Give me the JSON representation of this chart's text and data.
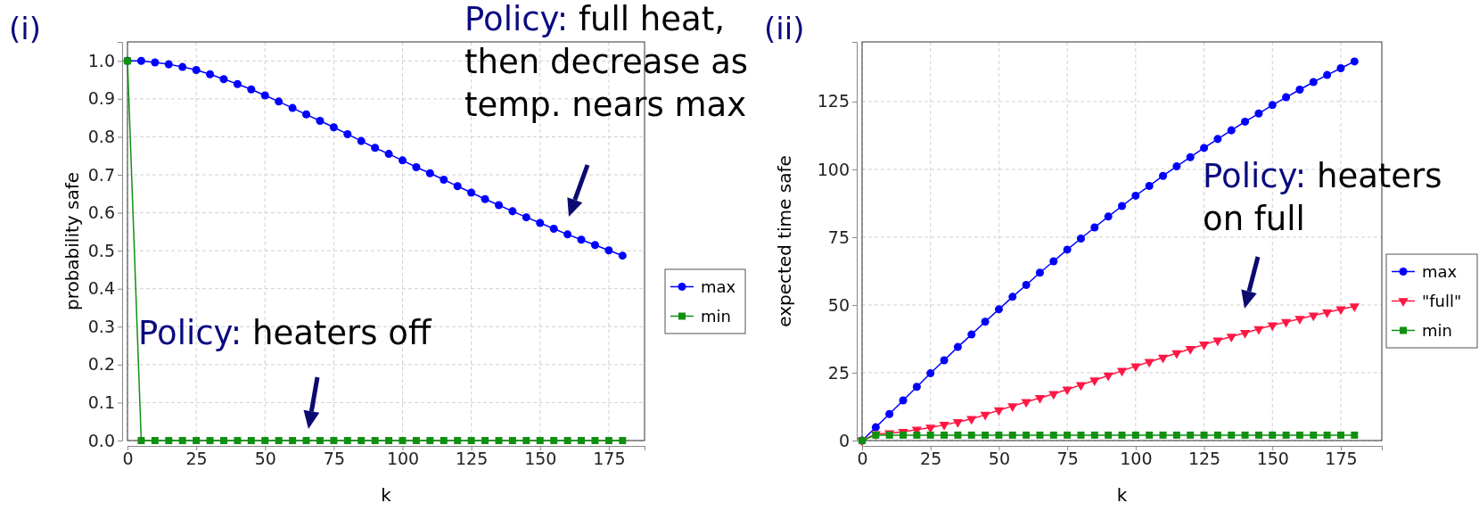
{
  "chart_data": [
    {
      "type": "line",
      "title": "(i)",
      "xlabel": "k",
      "ylabel": "probability safe",
      "x": [
        0,
        5,
        10,
        15,
        20,
        25,
        30,
        35,
        40,
        45,
        50,
        55,
        60,
        65,
        70,
        75,
        80,
        85,
        90,
        95,
        100,
        105,
        110,
        115,
        120,
        125,
        130,
        135,
        140,
        145,
        150,
        155,
        160,
        165,
        170,
        175,
        180
      ],
      "series": [
        {
          "name": "max",
          "color": "#0000ff",
          "marker": "circle",
          "values": [
            1.0,
            1.0,
            0.996,
            0.991,
            0.984,
            0.976,
            0.965,
            0.952,
            0.939,
            0.925,
            0.909,
            0.893,
            0.876,
            0.859,
            0.842,
            0.825,
            0.807,
            0.789,
            0.771,
            0.755,
            0.738,
            0.72,
            0.704,
            0.687,
            0.67,
            0.653,
            0.636,
            0.62,
            0.604,
            0.588,
            0.573,
            0.558,
            0.543,
            0.529,
            0.515,
            0.501,
            0.487
          ]
        },
        {
          "name": "min",
          "color": "#109010",
          "marker": "square",
          "values": [
            1.0,
            0,
            0,
            0,
            0,
            0,
            0,
            0,
            0,
            0,
            0,
            0,
            0,
            0,
            0,
            0,
            0,
            0,
            0,
            0,
            0,
            0,
            0,
            0,
            0,
            0,
            0,
            0,
            0,
            0,
            0,
            0,
            0,
            0,
            0,
            0,
            0
          ]
        }
      ],
      "xlim": [
        0,
        188
      ],
      "xticks": [
        0,
        25,
        50,
        75,
        100,
        125,
        150,
        175
      ],
      "ylim": [
        0,
        1.05
      ],
      "yticks": [
        {
          "value": 0,
          "label": "0.0"
        },
        0.1,
        0.2,
        0.3,
        0.4,
        0.5,
        0.6,
        0.7,
        0.8,
        0.9,
        {
          "value": 1,
          "label": "1.0"
        }
      ],
      "grid": true,
      "legend": "right",
      "annotations": [
        "Policy: full heat,\nthen decrease as\ntemp. nears max",
        "Policy: heaters off"
      ]
    },
    {
      "type": "line",
      "title": "(ii)",
      "xlabel": "k",
      "ylabel": "expected time safe",
      "x": [
        0,
        5,
        10,
        15,
        20,
        25,
        30,
        35,
        40,
        45,
        50,
        55,
        60,
        65,
        70,
        75,
        80,
        85,
        90,
        95,
        100,
        105,
        110,
        115,
        120,
        125,
        130,
        135,
        140,
        145,
        150,
        155,
        160,
        165,
        170,
        175,
        180
      ],
      "series": [
        {
          "name": "max",
          "color": "#0000ff",
          "marker": "circle",
          "values": [
            0,
            4.9,
            9.8,
            14.8,
            19.8,
            24.8,
            29.6,
            34.5,
            39.1,
            43.8,
            48.4,
            53.0,
            57.4,
            61.9,
            66.1,
            70.4,
            74.5,
            78.6,
            82.6,
            86.5,
            90.3,
            93.9,
            97.6,
            101.1,
            104.5,
            107.9,
            111.2,
            114.4,
            117.6,
            120.6,
            123.7,
            126.6,
            129.4,
            132.2,
            134.8,
            137.3,
            139.8
          ]
        },
        {
          "name": "\"full\"",
          "color": "#ff1744",
          "marker": "triangle",
          "values": [
            0,
            2.4,
            2.7,
            3.2,
            4.0,
            4.8,
            5.8,
            6.8,
            8.0,
            9.5,
            11.2,
            12.7,
            14.2,
            15.7,
            17.2,
            18.8,
            20.5,
            22.2,
            24.0,
            25.7,
            27.4,
            29.0,
            30.6,
            32.2,
            33.8,
            35.4,
            36.9,
            38.3,
            39.7,
            41.1,
            42.5,
            43.7,
            44.9,
            46.1,
            47.3,
            48.4,
            49.5
          ]
        },
        {
          "name": "min",
          "color": "#109010",
          "marker": "square",
          "values": [
            0,
            2,
            2,
            2,
            2,
            2,
            2,
            2,
            2,
            2,
            2,
            2,
            2,
            2,
            2,
            2,
            2,
            2,
            2,
            2,
            2,
            2,
            2,
            2,
            2,
            2,
            2,
            2,
            2,
            2,
            2,
            2,
            2,
            2,
            2,
            2,
            2
          ]
        }
      ],
      "xlim": [
        0,
        190
      ],
      "xticks": [
        0,
        25,
        50,
        75,
        100,
        125,
        150,
        175
      ],
      "ylim": [
        0,
        147
      ],
      "yticks": [
        0,
        25,
        50,
        75,
        100,
        125
      ],
      "grid": true,
      "legend": "right",
      "annotations": [
        "Policy: heaters\non full"
      ]
    }
  ]
}
